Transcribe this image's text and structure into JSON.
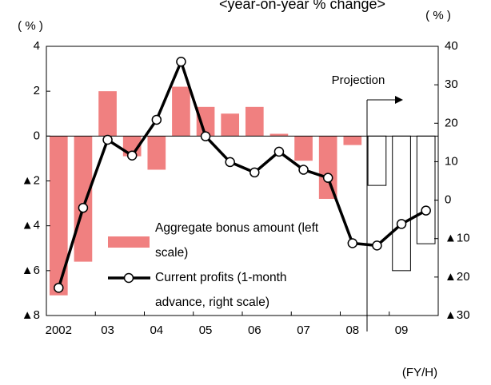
{
  "chart_data": {
    "type": "bar_line",
    "title": "<year-on-year  % change>",
    "y_label": "( % )",
    "y2_label": "( % )",
    "x_label": "(FY/H)",
    "annotation": "Projection",
    "categories": [
      "2002",
      null,
      "03",
      null,
      "04",
      null,
      "05",
      null,
      "06",
      null,
      "07",
      null,
      "08",
      null,
      "09",
      null
    ],
    "series": [
      {
        "name": "Aggregate bonus amount (left scale)",
        "type": "bar",
        "axis": "y",
        "colors": [
          "#f08080",
          "#f08080",
          "#f08080",
          "#f08080",
          "#f08080",
          "#f08080",
          "#f08080",
          "#f08080",
          "#f08080",
          "#f08080",
          "#f08080",
          "#f08080",
          "#f08080",
          "#ffffff",
          "#ffffff",
          "#ffffff"
        ],
        "values": [
          -7.1,
          -5.6,
          2.0,
          -0.9,
          -1.5,
          2.2,
          1.3,
          1.0,
          1.3,
          0.1,
          -1.1,
          -2.8,
          -0.4,
          -2.2,
          -6.0,
          -4.8
        ]
      },
      {
        "name": "Current profits (1-month advance, right scale)",
        "type": "line",
        "axis": "y2",
        "color": "#000000",
        "values": [
          -22.8,
          -2.0,
          15.7,
          11.6,
          20.9,
          36.0,
          16.6,
          9.9,
          7.2,
          12.6,
          7.9,
          5.8,
          -11.2,
          -11.8,
          -6.2,
          -2.7
        ]
      }
    ],
    "ylim": [
      -8,
      4
    ],
    "yticks": [
      4,
      2,
      0,
      {
        "value": -2,
        "label": "▲2"
      },
      {
        "value": -4,
        "label": "▲4"
      },
      {
        "value": -6,
        "label": "▲6"
      },
      {
        "value": -8,
        "label": "▲8"
      }
    ],
    "y2lim": [
      -30,
      40
    ],
    "y2ticks": [
      40,
      30,
      20,
      10,
      0,
      {
        "value": -10,
        "label": "▲10"
      },
      {
        "value": -20,
        "label": "▲20"
      },
      {
        "value": -30,
        "label": "▲30"
      }
    ]
  }
}
